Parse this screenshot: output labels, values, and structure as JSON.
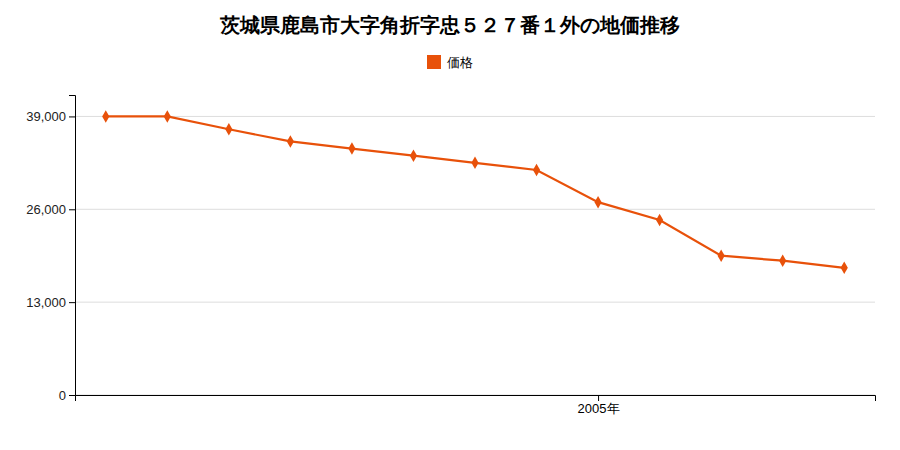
{
  "chart_data": {
    "type": "line",
    "title": "茨城県鹿島市大字角折字忠５２７番１外の地価推移",
    "x": [
      1997,
      1998,
      1999,
      2000,
      2001,
      2002,
      2003,
      2004,
      2005,
      2006,
      2007,
      2008,
      2009
    ],
    "series": [
      {
        "name": "価格",
        "color": "#e8510a",
        "marker": "diamond",
        "line_style": "solid",
        "values": [
          39000,
          39000,
          37200,
          35500,
          34500,
          33500,
          32500,
          31500,
          27000,
          24500,
          19500,
          18800,
          17800
        ]
      }
    ],
    "xlim": [
      1996.5,
      2009.5
    ],
    "xticks": [
      {
        "value": 2005,
        "label": "2005年"
      }
    ],
    "ylim": [
      0,
      42000
    ],
    "yticks": [
      0,
      {
        "value": 13000,
        "label": "13,000"
      },
      {
        "value": 26000,
        "label": "26,000"
      },
      {
        "value": 39000,
        "label": "39,000"
      }
    ],
    "grid": "y",
    "legend": "top"
  }
}
